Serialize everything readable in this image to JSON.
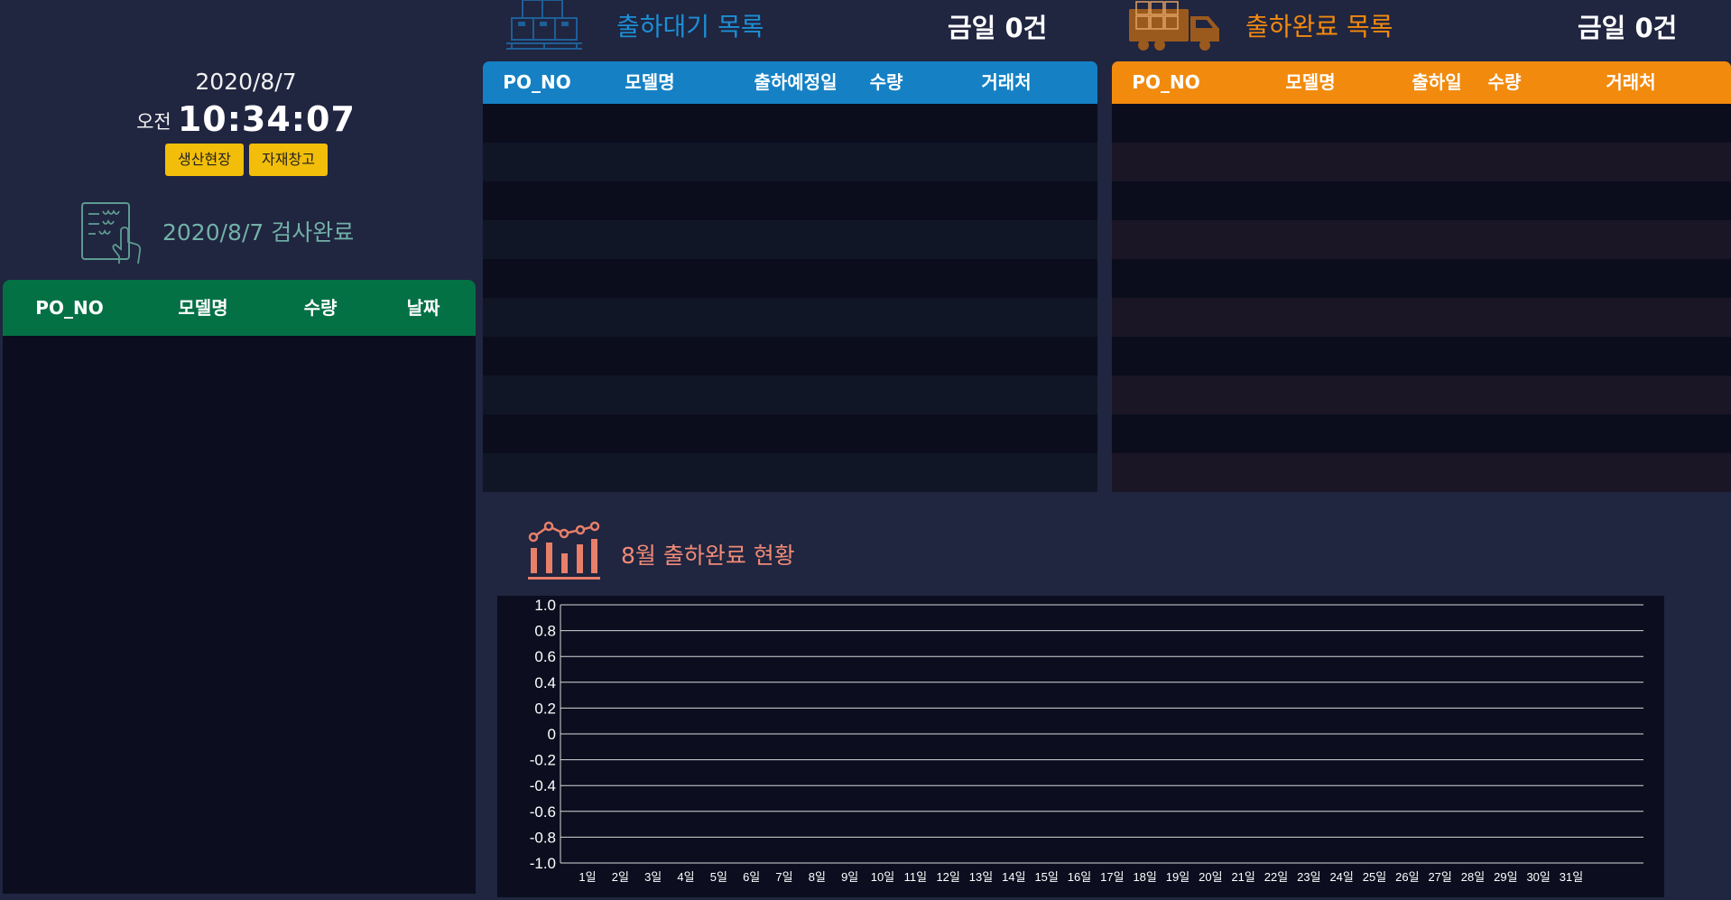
{
  "clock": {
    "date": "2020/8/7",
    "ampm": "오전",
    "time": "10:34:07"
  },
  "nav": {
    "production_label": "생산현장",
    "warehouse_label": "자재창고"
  },
  "inspection": {
    "title": "2020/8/7 검사완료",
    "columns": [
      "PO_NO",
      "모델명",
      "수량",
      "날짜"
    ],
    "header_color": "#047145",
    "rows": []
  },
  "waiting": {
    "title": "출하대기 목록",
    "count_label": "금일 0건",
    "columns": [
      "PO_NO",
      "모델명",
      "출하예정일",
      "수량",
      "거래처"
    ],
    "header_color": "#1581c4",
    "title_color": "#1c8fd6",
    "rows": []
  },
  "done": {
    "title": "출하완료 목록",
    "count_label": "금일 0건",
    "columns": [
      "PO_NO",
      "모델명",
      "출하일",
      "수량",
      "거래처"
    ],
    "header_color": "#f28a0e",
    "title_color": "#f28a0e",
    "rows": []
  },
  "chart_section": {
    "title": "8월 출하완료 현황",
    "title_color": "#f08b76"
  },
  "chart_data": {
    "type": "bar",
    "categories": [
      "1일",
      "2일",
      "3일",
      "4일",
      "5일",
      "6일",
      "7일",
      "8일",
      "9일",
      "10일",
      "11일",
      "12일",
      "13일",
      "14일",
      "15일",
      "16일",
      "17일",
      "18일",
      "19일",
      "20일",
      "21일",
      "22일",
      "23일",
      "24일",
      "25일",
      "26일",
      "27일",
      "28일",
      "29일",
      "30일",
      "31일"
    ],
    "series": [],
    "y_ticks": [
      "1.0",
      "0.8",
      "0.6",
      "0.4",
      "0.2",
      "0",
      "-0.2",
      "-0.4",
      "-0.6",
      "-0.8",
      "-1.0"
    ],
    "ylim": [
      -1.0,
      1.0
    ],
    "grid": true,
    "title": "",
    "xlabel": "",
    "ylabel": ""
  }
}
